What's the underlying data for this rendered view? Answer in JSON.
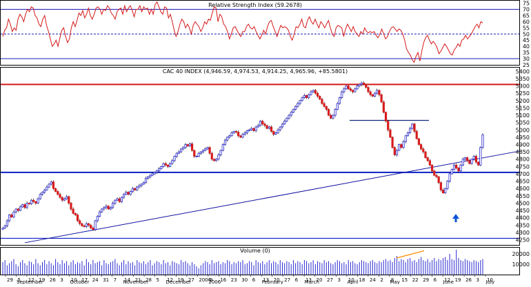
{
  "colors": {
    "frame": "#000000",
    "up": "#2a2ad0",
    "down": "#d81c1c",
    "trend": "#1010a0",
    "support": "#0b1fc4",
    "resistance": "#d41818",
    "rsi_line": "#d41818",
    "rsi_ref": "#1a1ab5",
    "volume": "#2a2ad0",
    "volume_trend": "#ff8c00",
    "arrow": "#0b55d8",
    "grid": "#9090d8"
  },
  "chart_data": [
    {
      "type": "line",
      "title": "Relative Strength Index (59.2678)",
      "ylim": [
        25,
        77
      ],
      "yticks": [
        25,
        30,
        35,
        40,
        45,
        50,
        55,
        60,
        65,
        70,
        75
      ],
      "reference_lines": [
        {
          "value": 70,
          "style": "solid"
        },
        {
          "value": 50,
          "style": "dashed"
        },
        {
          "value": 30,
          "style": "solid"
        }
      ],
      "series": [
        {
          "values": [
            48,
            53,
            55,
            62,
            58,
            52,
            55,
            53,
            62,
            66,
            64,
            60,
            66,
            70,
            68,
            72,
            71,
            65,
            63,
            58,
            56,
            62,
            65,
            57,
            52,
            46,
            40,
            42,
            45,
            40,
            47,
            53,
            55,
            48,
            43,
            46,
            55,
            60,
            56,
            61,
            67,
            65,
            69,
            63,
            66,
            71,
            65,
            62,
            66,
            71,
            72,
            70,
            66,
            70,
            69,
            73,
            71,
            67,
            65,
            62,
            68,
            70,
            71,
            66,
            73,
            68,
            71,
            73,
            69,
            64,
            70,
            70,
            73,
            68,
            72,
            70,
            71,
            66,
            70,
            66,
            74,
            76,
            72,
            68,
            66,
            72,
            71,
            63,
            66,
            60,
            53,
            48,
            52,
            58,
            62,
            60,
            55,
            58,
            55,
            50,
            57,
            60,
            58,
            56,
            52,
            55,
            60,
            58,
            62,
            61,
            67,
            72,
            71,
            60,
            66,
            64,
            58,
            56,
            52,
            46,
            50,
            55,
            56,
            53,
            50,
            48,
            52,
            52,
            56,
            58,
            55,
            54,
            56,
            52,
            49,
            46,
            49,
            53,
            50,
            56,
            60,
            61,
            56,
            52,
            48,
            53,
            57,
            55,
            56,
            55,
            53,
            48,
            45,
            50,
            56,
            55,
            58,
            62,
            56,
            55,
            61,
            64,
            60,
            58,
            62,
            58,
            55,
            60,
            58,
            55,
            58,
            61,
            55,
            50,
            48,
            55,
            57,
            56,
            55,
            48,
            54,
            58,
            55,
            52,
            56,
            52,
            50,
            48,
            52,
            50,
            55,
            52,
            51,
            52,
            51,
            52,
            49,
            47,
            50,
            54,
            50,
            46,
            48,
            52,
            55,
            56,
            54,
            52,
            54,
            53,
            50,
            45,
            38,
            35,
            33,
            29,
            27,
            32,
            35,
            28,
            36,
            43,
            47,
            49,
            45,
            42,
            44,
            42,
            39,
            34,
            36,
            39,
            42,
            40,
            37,
            34,
            33,
            37,
            39,
            42,
            40,
            45,
            46,
            49,
            46,
            48,
            50,
            53,
            56,
            58,
            55,
            60,
            59
          ]
        }
      ]
    },
    {
      "type": "candlestick",
      "title": "CAC 40 INDEX (4,946.59, 4,974.53, 4,914.25, 4,965.96, +85.5801)",
      "ylim": [
        4215,
        5425
      ],
      "yticks": [
        4250,
        4300,
        4350,
        4400,
        4450,
        4500,
        4550,
        4600,
        4650,
        4700,
        4750,
        4800,
        4850,
        4900,
        4950,
        5000,
        5050,
        5100,
        5150,
        5200,
        5250,
        5300,
        5350,
        5400
      ],
      "horizontal_lines": [
        {
          "name": "resistance",
          "value": 5310
        },
        {
          "name": "support",
          "value": 4710
        },
        {
          "name": "support-lower",
          "value": 4260
        },
        {
          "name": "april-support",
          "value": 5065,
          "from": "Apr 3",
          "to": "Jun 1"
        }
      ],
      "trendline": {
        "from": {
          "date": "Sep 24",
          "value": 4230
        },
        "to": {
          "date": "Jun 30",
          "value": 4855
        }
      },
      "x_labels": [
        "Sep 29",
        "Sep 5",
        "Sep 12",
        "Sep 19",
        "Sep 26",
        "Oct 3",
        "Oct 10",
        "Oct 17",
        "Oct 24",
        "Oct 31",
        "Nov 7",
        "Nov 14",
        "Nov 21",
        "Nov 28",
        "Dec 5",
        "Dec 12",
        "Dec 19",
        "Dec 27",
        "Jan 2006",
        "Jan 9",
        "Jan 16",
        "Jan 23",
        "Jan 30",
        "Feb 6",
        "Feb 13",
        "Feb 20",
        "Feb 27",
        "Mar 6",
        "Mar 13",
        "Mar 20",
        "Mar 27",
        "Apr 3",
        "Apr 10",
        "Apr 18",
        "Apr 24",
        "May 2",
        "May 8",
        "May 15",
        "May 22",
        "May 29",
        "Jun 6",
        "Jun 12",
        "Jun 19",
        "Jun 26",
        "Jul 3",
        "Jul 10"
      ],
      "x_labels_text": [
        "29",
        "5",
        "12",
        "19",
        "26",
        "3",
        "10",
        "17",
        "24",
        "31",
        "7",
        "14",
        "21",
        "28",
        "5",
        "12",
        "19",
        "27",
        "2006",
        "9",
        "16",
        "23",
        "30",
        "6",
        "13",
        "20",
        "27",
        "6",
        "13",
        "20",
        "27",
        "3",
        "10",
        "18",
        "24",
        "2",
        "8",
        "15",
        "22",
        "29",
        "6",
        "12",
        "19",
        "26",
        "3",
        "10"
      ],
      "month_labels": [
        "September",
        "October",
        "November",
        "December",
        "2006",
        "February",
        "March",
        "April",
        "May",
        "June",
        "July"
      ],
      "close": [
        4330,
        4345,
        4380,
        4420,
        4405,
        4440,
        4460,
        4450,
        4475,
        4490,
        4470,
        4500,
        4495,
        4520,
        4510,
        4500,
        4530,
        4560,
        4575,
        4590,
        4610,
        4630,
        4645,
        4600,
        4580,
        4560,
        4540,
        4520,
        4530,
        4545,
        4500,
        4460,
        4430,
        4420,
        4380,
        4360,
        4345,
        4340,
        4360,
        4350,
        4330,
        4320,
        4380,
        4410,
        4440,
        4460,
        4470,
        4480,
        4460,
        4470,
        4500,
        4520,
        4530,
        4510,
        4540,
        4560,
        4575,
        4560,
        4580,
        4600,
        4590,
        4610,
        4620,
        4630,
        4640,
        4670,
        4680,
        4690,
        4700,
        4710,
        4720,
        4735,
        4750,
        4770,
        4760,
        4750,
        4770,
        4790,
        4820,
        4840,
        4850,
        4870,
        4880,
        4900,
        4890,
        4905,
        4860,
        4820,
        4820,
        4840,
        4850,
        4860,
        4870,
        4880,
        4840,
        4800,
        4790,
        4800,
        4830,
        4860,
        4900,
        4930,
        4950,
        4960,
        4980,
        4990,
        4985,
        4960,
        4950,
        4970,
        4980,
        4995,
        5000,
        5010,
        4995,
        5020,
        5030,
        5060,
        5040,
        5030,
        5010,
        5020,
        4990,
        4970,
        4980,
        5000,
        5020,
        5040,
        5060,
        5080,
        5100,
        5120,
        5140,
        5160,
        5180,
        5200,
        5220,
        5235,
        5220,
        5240,
        5260,
        5270,
        5250,
        5230,
        5210,
        5180,
        5160,
        5140,
        5100,
        5080,
        5100,
        5140,
        5180,
        5220,
        5260,
        5280,
        5300,
        5280,
        5270,
        5260,
        5280,
        5300,
        5310,
        5320,
        5310,
        5290,
        5260,
        5240,
        5230,
        5250,
        5270,
        5240,
        5190,
        5120,
        5060,
        5000,
        4950,
        4880,
        4830,
        4860,
        4900,
        4880,
        4920,
        4960,
        4980,
        5010,
        5040,
        4990,
        4940,
        4900,
        4870,
        4850,
        4810,
        4790,
        4760,
        4720,
        4690,
        4680,
        4640,
        4590,
        4570,
        4600,
        4650,
        4700,
        4730,
        4760,
        4740,
        4720,
        4760,
        4800,
        4810,
        4790,
        4770,
        4800,
        4820,
        4780,
        4760,
        4880,
        4966
      ]
    },
    {
      "type": "bar",
      "title": "Volume (0)",
      "ylim": [
        0,
        26000
      ],
      "yticks": [
        10000,
        20000
      ],
      "values": [
        12000,
        14000,
        9000,
        11000,
        13000,
        15000,
        10000,
        8000,
        12000,
        14000,
        11000,
        9000,
        13000,
        12000,
        10000,
        15000,
        11000,
        9000,
        12000,
        14000,
        10000,
        13000,
        11000,
        9000,
        15000,
        12000,
        10000,
        14000,
        11000,
        13000,
        9000,
        12000,
        14000,
        10000,
        12000,
        11000,
        13000,
        9000,
        15000,
        12000,
        10000,
        14000,
        11000,
        12000,
        13000,
        9000,
        14000,
        11000,
        10000,
        12000,
        13000,
        15000,
        11000,
        9000,
        12000,
        14000,
        10000,
        13000,
        11000,
        12000,
        9000,
        14000,
        12000,
        11000,
        13000,
        10000,
        12000,
        14000,
        9000,
        11000,
        13000,
        12000,
        10000,
        14000,
        11000,
        12000,
        9000,
        13000,
        12000,
        11000,
        10000,
        14000,
        12000,
        13000,
        11000,
        9000,
        12000,
        10000,
        8000,
        6000,
        9000,
        11000,
        13000,
        12000,
        10000,
        14000,
        11000,
        12000,
        13000,
        10000,
        12000,
        11000,
        14000,
        13000,
        10000,
        12000,
        11000,
        13000,
        12000,
        14000,
        10000,
        11000,
        13000,
        12000,
        9000,
        14000,
        12000,
        11000,
        13000,
        10000,
        12000,
        14000,
        11000,
        13000,
        12000,
        10000,
        14000,
        12000,
        11000,
        13000,
        12000,
        10000,
        14000,
        11000,
        13000,
        12000,
        10000,
        14000,
        13000,
        11000,
        12000,
        14000,
        10000,
        13000,
        12000,
        11000,
        14000,
        12000,
        13000,
        11000,
        10000,
        12000,
        14000,
        13000,
        11000,
        12000,
        10000,
        14000,
        12000,
        13000,
        11000,
        10000,
        12000,
        14000,
        13000,
        12000,
        11000,
        13000,
        14000,
        12000,
        11000,
        13000,
        12000,
        14000,
        15000,
        13000,
        14000,
        12000,
        16000,
        18000,
        13000,
        15000,
        14000,
        12000,
        15000,
        16000,
        13000,
        14000,
        12000,
        15000,
        17000,
        14000,
        13000,
        15000,
        12000,
        14000,
        16000,
        13000,
        15000,
        14000,
        16000,
        17000,
        14000,
        20000,
        15000,
        14000,
        24000,
        16000,
        14000,
        13000,
        15000,
        14000,
        13000,
        12000,
        14000,
        13000,
        12000,
        14000,
        15000
      ]
    }
  ],
  "annotations": {
    "up_arrow": "upward-arrow"
  }
}
